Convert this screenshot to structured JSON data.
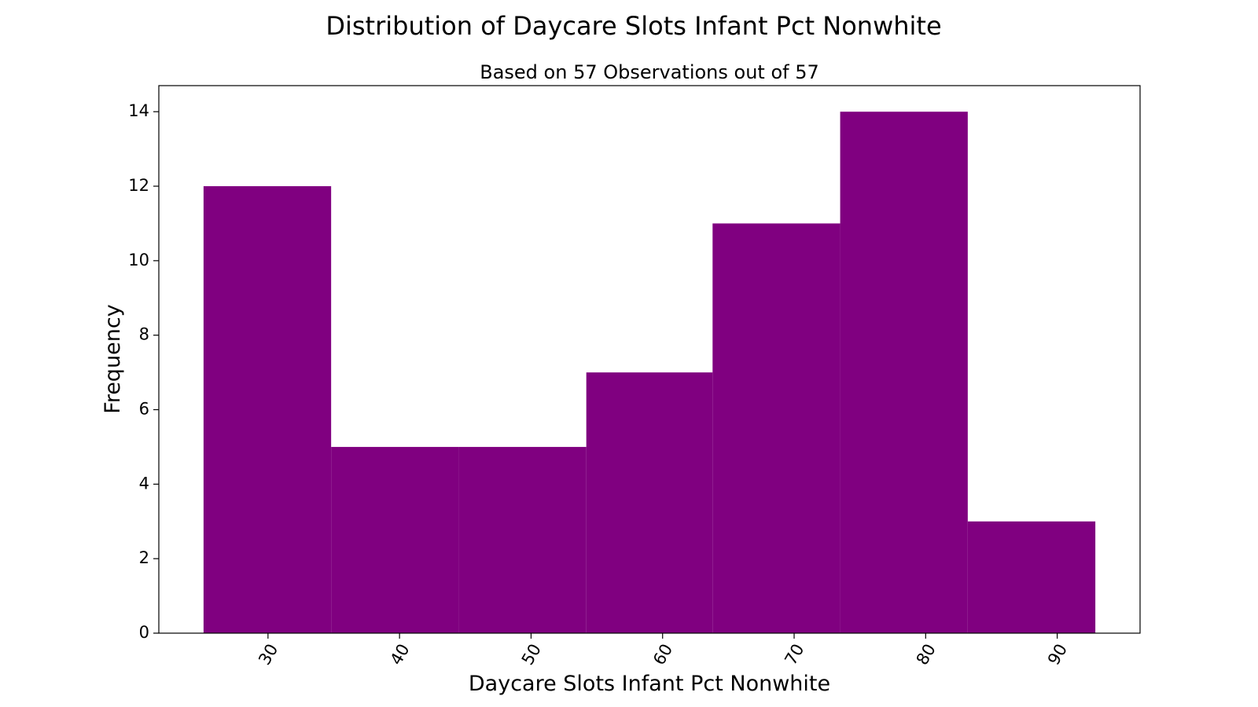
{
  "chart_data": {
    "type": "histogram",
    "title": "Distribution of Daycare Slots Infant Pct Nonwhite",
    "subtitle": "Based on 57 Observations out of 57",
    "xlabel": "Daycare Slots Infant Pct Nonwhite",
    "ylabel": "Frequency",
    "bar_color": "#800080",
    "bins": [
      {
        "x0": 25.1,
        "x1": 34.8,
        "count": 12
      },
      {
        "x0": 34.8,
        "x1": 44.5,
        "count": 5
      },
      {
        "x0": 44.5,
        "x1": 54.2,
        "count": 5
      },
      {
        "x0": 54.2,
        "x1": 63.8,
        "count": 7
      },
      {
        "x0": 63.8,
        "x1": 73.5,
        "count": 11
      },
      {
        "x0": 73.5,
        "x1": 83.2,
        "count": 14
      },
      {
        "x0": 83.2,
        "x1": 92.9,
        "count": 3
      }
    ],
    "xlim": [
      21.7,
      96.3
    ],
    "ylim": [
      0,
      14.7
    ],
    "xticks": [
      30,
      40,
      50,
      60,
      70,
      80,
      90
    ],
    "yticks": [
      0,
      2,
      4,
      6,
      8,
      10,
      12,
      14
    ],
    "grid": false,
    "legend": false
  }
}
